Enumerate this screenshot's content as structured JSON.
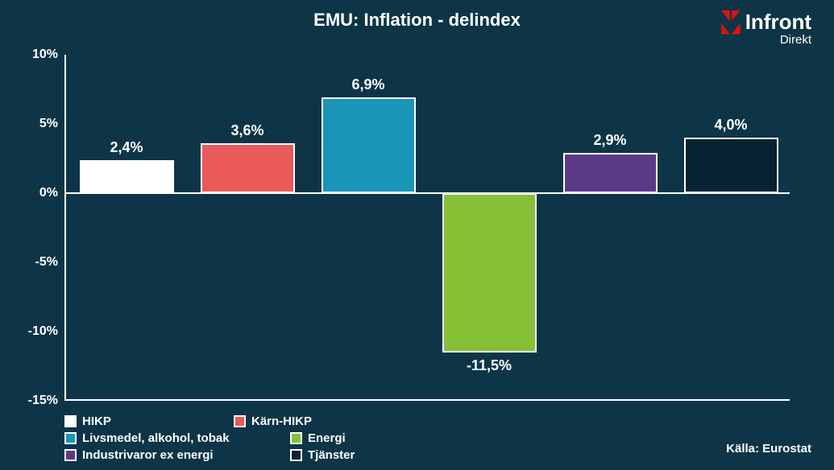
{
  "chart": {
    "type": "bar",
    "title": "EMU: Inflation - delindex",
    "background_color": "#0d3547",
    "axis_color": "#ffffff",
    "text_color": "#ffffff",
    "title_fontsize": 22,
    "label_fontsize": 18,
    "tick_fontsize": 16,
    "legend_fontsize": 15,
    "ylim": [
      -15,
      10
    ],
    "ytick_step": 5,
    "ytick_labels": [
      "-15%",
      "-10%",
      "-5%",
      "0%",
      "5%",
      "10%"
    ],
    "bar_width_ratio": 0.78,
    "bar_border_color": "#ffffff",
    "series": [
      {
        "name": "HIKP",
        "value": 2.4,
        "label": "2,4%",
        "color": "#ffffff"
      },
      {
        "name": "Kärn-HIKP",
        "value": 3.6,
        "label": "3,6%",
        "color": "#ea5a58"
      },
      {
        "name": "Livsmedel, alkohol, tobak",
        "value": 6.9,
        "label": "6,9%",
        "color": "#1995b8"
      },
      {
        "name": "Energi",
        "value": -11.5,
        "label": "-11,5%",
        "color": "#86c037"
      },
      {
        "name": "Industrivaror ex energi",
        "value": 2.9,
        "label": "2,9%",
        "color": "#5d3a88"
      },
      {
        "name": "Tjänster",
        "value": 4.0,
        "label": "4,0%",
        "color": "#072230"
      }
    ]
  },
  "logo": {
    "brand": "Infront",
    "subtitle": "Direkt"
  },
  "source": "Källa: Eurostat",
  "legend_col_widths": [
    210,
    280,
    280
  ]
}
